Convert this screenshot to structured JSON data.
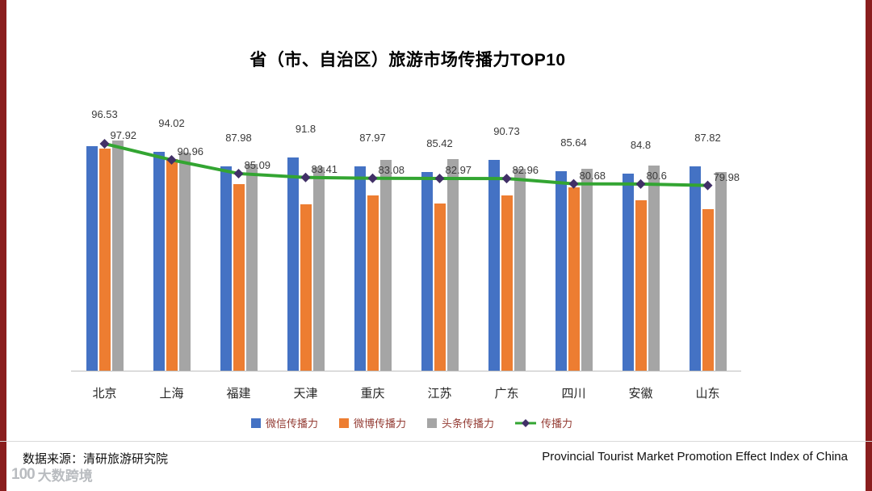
{
  "page": {
    "footer": {
      "source": "数据来源：清研旅游研究院",
      "subtitle_en": "Provincial Tourist Market Promotion Effect Index of China"
    },
    "watermark": {
      "logo": "100",
      "text": "大数跨境"
    }
  },
  "colors": {
    "wechat_bar": "#4472C4",
    "weibo_bar": "#ED7D31",
    "toutiao_bar": "#A5A5A5",
    "line": "#33A532",
    "line_marker": "#413067",
    "edge_strip": "#8A1E1E",
    "legend_text": "#943C34",
    "axis_line": "#BFBFBF"
  },
  "chart_data": {
    "type": "bar",
    "subtype": "grouped bars with overlay line",
    "title": "省（市、自治区）旅游市场传播力TOP10",
    "categories": [
      "北京",
      "上海",
      "福建",
      "天津",
      "重庆",
      "江苏",
      "广东",
      "四川",
      "安徽",
      "山东"
    ],
    "series": [
      {
        "key": "wechat",
        "name": "微信传播力",
        "type": "bar",
        "color": "#4472C4",
        "labeled": true,
        "values": [
          96.53,
          94.02,
          87.98,
          91.8,
          87.97,
          85.42,
          90.73,
          85.64,
          84.8,
          87.82
        ]
      },
      {
        "key": "weibo",
        "name": "微博传播力",
        "type": "bar",
        "color": "#ED7D31",
        "labeled": false,
        "estimated": true,
        "values": [
          95.5,
          90.9,
          80.2,
          71.5,
          75.3,
          71.9,
          75.3,
          78.8,
          73.3,
          69.4
        ]
      },
      {
        "key": "toutiao",
        "name": "头条传播力",
        "type": "bar",
        "color": "#A5A5A5",
        "labeled": false,
        "estimated": true,
        "values": [
          99.0,
          93.8,
          89.0,
          87.5,
          90.6,
          91.0,
          86.8,
          86.8,
          88.2,
          85.4
        ]
      },
      {
        "key": "total",
        "name": "传播力",
        "type": "line",
        "color": "#33A532",
        "marker": "diamond",
        "marker_color": "#413067",
        "labeled": true,
        "values": [
          97.92,
          90.96,
          85.09,
          83.41,
          83.08,
          82.97,
          82.96,
          80.68,
          80.6,
          79.98
        ]
      }
    ],
    "ylim": [
      0,
      122
    ],
    "grid": false,
    "legend_position": "bottom",
    "xlabel": "",
    "ylabel": ""
  }
}
